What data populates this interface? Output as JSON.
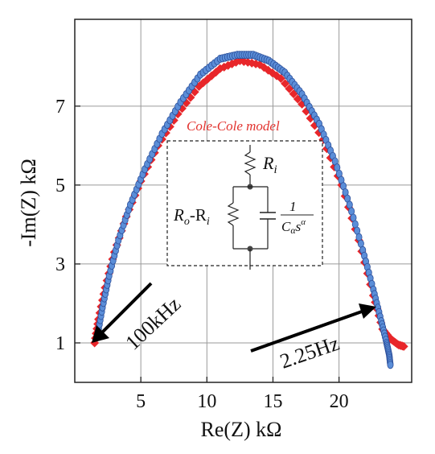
{
  "colors": {
    "data_model": "#e8262a",
    "data_measured_fill": "#5b8ed8",
    "data_measured_edge": "#2c4f9a",
    "grid": "#9a9a9a",
    "frame": "#222222"
  },
  "chart_data": {
    "type": "scatter",
    "xlabel": "Re(Z) kΩ",
    "ylabel": "-Im(Z) kΩ",
    "xlim": [
      0,
      25.5
    ],
    "ylim": [
      0,
      9.2
    ],
    "x_ticks": [
      5,
      10,
      15,
      20
    ],
    "y_ticks": [
      1,
      3,
      5,
      7
    ],
    "x_tick_labels": [
      "5",
      "10",
      "15",
      "20"
    ],
    "y_tick_labels": [
      "1",
      "3",
      "5",
      "7"
    ],
    "grid": true,
    "series": [
      {
        "name": "Cole-Cole model",
        "marker": "diamond",
        "color": "#e8262a",
        "points": [
          [
            1.5,
            1.0
          ],
          [
            1.8,
            1.6
          ],
          [
            2.3,
            2.4
          ],
          [
            3.0,
            3.3
          ],
          [
            3.9,
            4.2
          ],
          [
            5.0,
            5.1
          ],
          [
            6.3,
            6.0
          ],
          [
            7.8,
            6.8
          ],
          [
            9.4,
            7.5
          ],
          [
            11.0,
            7.95
          ],
          [
            12.5,
            8.15
          ],
          [
            14.0,
            8.05
          ],
          [
            15.6,
            7.7
          ],
          [
            17.2,
            7.05
          ],
          [
            18.8,
            6.15
          ],
          [
            20.2,
            5.0
          ],
          [
            21.5,
            3.6
          ],
          [
            22.6,
            2.2
          ],
          [
            23.3,
            1.35
          ],
          [
            23.9,
            1.1
          ],
          [
            24.5,
            0.95
          ],
          [
            25.0,
            0.9
          ]
        ]
      },
      {
        "name": "",
        "marker": "circle",
        "color": "#5b8ed8",
        "points": [
          [
            1.7,
            1.15
          ],
          [
            2.1,
            1.9
          ],
          [
            2.6,
            2.7
          ],
          [
            3.3,
            3.6
          ],
          [
            4.2,
            4.5
          ],
          [
            5.3,
            5.4
          ],
          [
            6.6,
            6.3
          ],
          [
            8.0,
            7.1
          ],
          [
            9.5,
            7.8
          ],
          [
            11.0,
            8.2
          ],
          [
            12.3,
            8.3
          ],
          [
            13.5,
            8.3
          ],
          [
            14.7,
            8.15
          ],
          [
            15.9,
            7.85
          ],
          [
            17.2,
            7.3
          ],
          [
            18.5,
            6.55
          ],
          [
            19.7,
            5.6
          ],
          [
            20.8,
            4.5
          ],
          [
            21.8,
            3.35
          ],
          [
            22.6,
            2.35
          ],
          [
            23.2,
            1.55
          ],
          [
            23.6,
            1.0
          ],
          [
            23.8,
            0.7
          ],
          [
            23.9,
            0.4
          ]
        ]
      }
    ],
    "annotations": [
      {
        "text": "100kHz",
        "arrow_to": [
          1.5,
          1.0
        ]
      },
      {
        "text": "2.25Hz",
        "arrow_to": [
          23.6,
          1.0
        ]
      }
    ],
    "inset": {
      "title": "Cole-Cole model",
      "r_series": "R",
      "r_series_sub": "i",
      "r_par": "R",
      "r_par_sub1": "o",
      "r_par_mid": "-R",
      "r_par_sub2": "i",
      "cpe_num": "1",
      "cpe_den": "C",
      "cpe_den_sub": "α",
      "cpe_den_s": "s",
      "cpe_den_sup": "α"
    }
  }
}
